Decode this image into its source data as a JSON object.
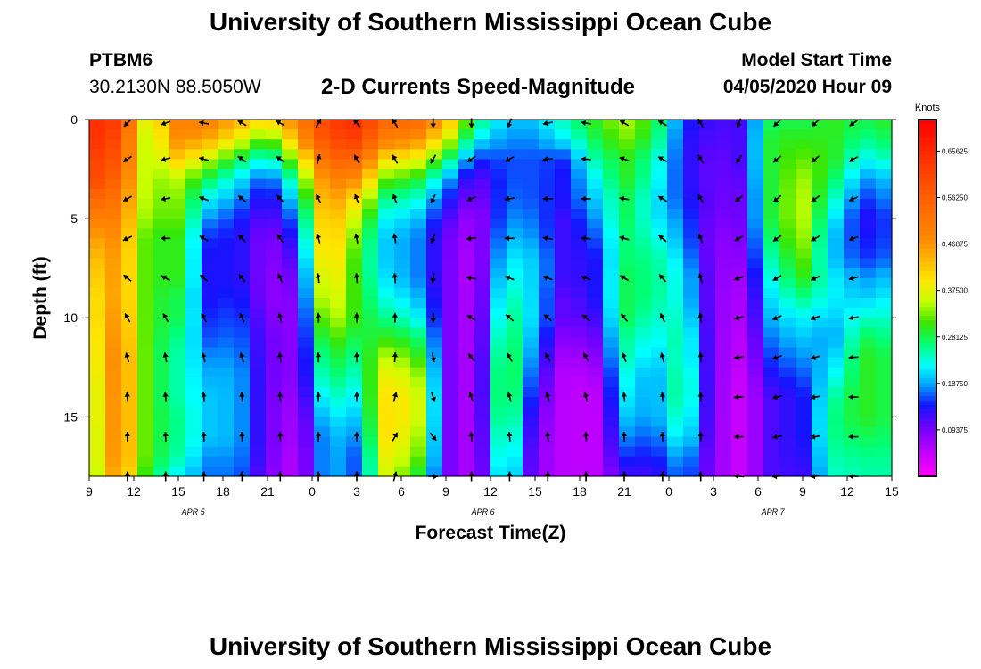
{
  "header": {
    "title": "University of Southern Mississippi Ocean Cube",
    "station": "PTBM6",
    "location": "30.2130N 88.5050W",
    "subtitle": "2-D Currents Speed-Magnitude",
    "model_start_label": "Model Start Time",
    "model_start_value": "04/05/2020 Hour 09"
  },
  "footer": {
    "title": "University of Southern Mississippi Ocean Cube"
  },
  "chart_data": {
    "type": "heatmap",
    "title": "2-D Currents Speed-Magnitude",
    "xlabel": "Forecast Time(Z)",
    "ylabel": "Depth (ft)",
    "x_ticks": [
      "9",
      "12",
      "15",
      "18",
      "21",
      "0",
      "3",
      "6",
      "9",
      "12",
      "15",
      "18",
      "21",
      "0",
      "3",
      "6",
      "9",
      "12",
      "15"
    ],
    "x_hours_since_start": [
      0,
      3,
      6,
      9,
      12,
      15,
      18,
      21,
      24,
      27,
      30,
      33,
      36,
      39,
      42,
      45,
      48,
      51,
      54
    ],
    "date_labels": [
      {
        "label": "APR 5",
        "hour": 7
      },
      {
        "label": "APR 6",
        "hour": 26.5
      },
      {
        "label": "APR 7",
        "hour": 46
      }
    ],
    "ylim": [
      0,
      18
    ],
    "y_ticks": [
      "0",
      "5",
      "10",
      "15"
    ],
    "y_tick_values": [
      0,
      5,
      10,
      15
    ],
    "colorbar": {
      "unit": "Knots",
      "range": [
        0,
        0.72
      ],
      "tick_values": [
        0.09375,
        0.1875,
        0.28125,
        0.375,
        0.46875,
        0.5625,
        0.65625
      ],
      "tick_labels": [
        "0.09375",
        "0.18750",
        "0.28125",
        "0.37500",
        "0.46875",
        "0.56250",
        "0.65625"
      ]
    },
    "grid": {
      "depths_ft": [
        0,
        1,
        2,
        3,
        4,
        5,
        6,
        7,
        8,
        9,
        10,
        11,
        12,
        13,
        14,
        15,
        16,
        17,
        18
      ],
      "profile_hours": [
        0,
        2,
        4,
        6,
        8,
        10,
        12,
        14,
        16,
        18,
        20,
        22,
        24,
        26,
        28,
        30,
        32,
        34,
        36,
        38,
        40,
        42,
        44,
        46,
        48,
        50,
        52,
        54
      ],
      "profiles_knots": [
        [
          0.65,
          0.65,
          0.62,
          0.62,
          0.55,
          0.5,
          0.45,
          0.42,
          0.4,
          0.38,
          0.38,
          0.36,
          0.35,
          0.34,
          0.33,
          0.33,
          0.32,
          0.32,
          0.31
        ],
        [
          0.62,
          0.6,
          0.58,
          0.55,
          0.52,
          0.5,
          0.48,
          0.47,
          0.47,
          0.47,
          0.48,
          0.49,
          0.5,
          0.5,
          0.5,
          0.5,
          0.5,
          0.5,
          0.48
        ],
        [
          0.35,
          0.33,
          0.33,
          0.33,
          0.33,
          0.32,
          0.3,
          0.3,
          0.3,
          0.3,
          0.3,
          0.3,
          0.3,
          0.3,
          0.3,
          0.3,
          0.3,
          0.3,
          0.28
        ],
        [
          0.5,
          0.48,
          0.42,
          0.35,
          0.33,
          0.32,
          0.3,
          0.3,
          0.3,
          0.28,
          0.28,
          0.26,
          0.25,
          0.25,
          0.25,
          0.26,
          0.26,
          0.25,
          0.22
        ],
        [
          0.5,
          0.45,
          0.35,
          0.28,
          0.22,
          0.18,
          0.15,
          0.14,
          0.14,
          0.14,
          0.15,
          0.16,
          0.18,
          0.19,
          0.2,
          0.2,
          0.2,
          0.18,
          0.17
        ],
        [
          0.45,
          0.38,
          0.28,
          0.22,
          0.18,
          0.15,
          0.14,
          0.14,
          0.14,
          0.15,
          0.16,
          0.17,
          0.18,
          0.19,
          0.19,
          0.19,
          0.19,
          0.18,
          0.17
        ],
        [
          0.4,
          0.3,
          0.22,
          0.15,
          0.12,
          0.1,
          0.08,
          0.08,
          0.08,
          0.08,
          0.09,
          0.1,
          0.1,
          0.1,
          0.1,
          0.1,
          0.1,
          0.1,
          0.09
        ],
        [
          0.5,
          0.45,
          0.35,
          0.28,
          0.22,
          0.18,
          0.15,
          0.12,
          0.1,
          0.09,
          0.08,
          0.08,
          0.08,
          0.08,
          0.07,
          0.06,
          0.06,
          0.05,
          0.05
        ],
        [
          0.62,
          0.6,
          0.55,
          0.5,
          0.48,
          0.46,
          0.45,
          0.44,
          0.42,
          0.4,
          0.37,
          0.33,
          0.3,
          0.28,
          0.25,
          0.22,
          0.2,
          0.2,
          0.2
        ],
        [
          0.65,
          0.62,
          0.55,
          0.48,
          0.4,
          0.35,
          0.32,
          0.3,
          0.3,
          0.3,
          0.3,
          0.28,
          0.26,
          0.24,
          0.22,
          0.2,
          0.18,
          0.16,
          0.16
        ],
        [
          0.55,
          0.5,
          0.4,
          0.32,
          0.26,
          0.22,
          0.2,
          0.2,
          0.21,
          0.23,
          0.26,
          0.3,
          0.35,
          0.38,
          0.4,
          0.4,
          0.4,
          0.38,
          0.36
        ],
        [
          0.55,
          0.48,
          0.38,
          0.3,
          0.24,
          0.2,
          0.18,
          0.18,
          0.18,
          0.2,
          0.23,
          0.28,
          0.32,
          0.36,
          0.38,
          0.38,
          0.36,
          0.34,
          0.3
        ],
        [
          0.45,
          0.38,
          0.28,
          0.2,
          0.15,
          0.12,
          0.1,
          0.1,
          0.1,
          0.1,
          0.1,
          0.1,
          0.1,
          0.1,
          0.1,
          0.1,
          0.1,
          0.1,
          0.1
        ],
        [
          0.28,
          0.22,
          0.15,
          0.1,
          0.08,
          0.06,
          0.06,
          0.05,
          0.05,
          0.05,
          0.05,
          0.05,
          0.05,
          0.05,
          0.05,
          0.05,
          0.05,
          0.05,
          0.05
        ],
        [
          0.2,
          0.18,
          0.16,
          0.16,
          0.17,
          0.18,
          0.2,
          0.22,
          0.24,
          0.26,
          0.28,
          0.3,
          0.32,
          0.33,
          0.33,
          0.32,
          0.3,
          0.28,
          0.26
        ],
        [
          0.2,
          0.18,
          0.16,
          0.16,
          0.16,
          0.17,
          0.18,
          0.2,
          0.2,
          0.2,
          0.2,
          0.18,
          0.16,
          0.14,
          0.12,
          0.1,
          0.09,
          0.08,
          0.08
        ],
        [
          0.25,
          0.22,
          0.15,
          0.14,
          0.14,
          0.12,
          0.12,
          0.12,
          0.12,
          0.1,
          0.1,
          0.08,
          0.06,
          0.05,
          0.05,
          0.05,
          0.05,
          0.05,
          0.05
        ],
        [
          0.3,
          0.28,
          0.25,
          0.22,
          0.2,
          0.18,
          0.16,
          0.14,
          0.14,
          0.14,
          0.12,
          0.1,
          0.08,
          0.06,
          0.05,
          0.05,
          0.05,
          0.05,
          0.05
        ],
        [
          0.35,
          0.33,
          0.3,
          0.3,
          0.28,
          0.28,
          0.27,
          0.27,
          0.28,
          0.28,
          0.28,
          0.26,
          0.25,
          0.23,
          0.22,
          0.2,
          0.18,
          0.15,
          0.12
        ],
        [
          0.3,
          0.28,
          0.25,
          0.24,
          0.22,
          0.22,
          0.24,
          0.26,
          0.26,
          0.26,
          0.24,
          0.22,
          0.2,
          0.18,
          0.18,
          0.18,
          0.16,
          0.14,
          0.12
        ],
        [
          0.15,
          0.14,
          0.14,
          0.14,
          0.15,
          0.17,
          0.18,
          0.2,
          0.22,
          0.22,
          0.24,
          0.26,
          0.26,
          0.28,
          0.28,
          0.26,
          0.24,
          0.2,
          0.18
        ],
        [
          0.12,
          0.11,
          0.1,
          0.1,
          0.1,
          0.09,
          0.08,
          0.08,
          0.08,
          0.08,
          0.08,
          0.08,
          0.08,
          0.08,
          0.08,
          0.08,
          0.08,
          0.08,
          0.08
        ],
        [
          0.12,
          0.12,
          0.12,
          0.11,
          0.1,
          0.1,
          0.09,
          0.08,
          0.07,
          0.06,
          0.06,
          0.05,
          0.05,
          0.04,
          0.04,
          0.04,
          0.04,
          0.04,
          0.04
        ],
        [
          0.28,
          0.3,
          0.3,
          0.3,
          0.3,
          0.3,
          0.28,
          0.26,
          0.24,
          0.22,
          0.2,
          0.18,
          0.16,
          0.14,
          0.12,
          0.12,
          0.12,
          0.12,
          0.12
        ],
        [
          0.28,
          0.3,
          0.32,
          0.34,
          0.35,
          0.35,
          0.34,
          0.32,
          0.3,
          0.26,
          0.22,
          0.2,
          0.18,
          0.16,
          0.14,
          0.14,
          0.14,
          0.13,
          0.12
        ],
        [
          0.3,
          0.3,
          0.3,
          0.28,
          0.25,
          0.22,
          0.2,
          0.2,
          0.22,
          0.22,
          0.2,
          0.18,
          0.2,
          0.22,
          0.25,
          0.26,
          0.26,
          0.25,
          0.24
        ],
        [
          0.28,
          0.26,
          0.22,
          0.18,
          0.15,
          0.13,
          0.14,
          0.15,
          0.18,
          0.2,
          0.24,
          0.28,
          0.3,
          0.3,
          0.3,
          0.3,
          0.28,
          0.26,
          0.25
        ],
        [
          0.3,
          0.28,
          0.25,
          0.2,
          0.18,
          0.16,
          0.16,
          0.17,
          0.2,
          0.22,
          0.24,
          0.26,
          0.28,
          0.28,
          0.28,
          0.28,
          0.27,
          0.26,
          0.25
        ]
      ],
      "arrow_depths_ft": [
        0,
        2,
        4,
        6,
        8,
        10,
        12,
        14,
        16,
        18
      ],
      "arrow_directions_deg": [
        [
          225,
          235,
          240,
          245,
          310,
          330,
          345,
          355,
          358,
          0
        ],
        [
          250,
          255,
          260,
          270,
          300,
          330,
          350,
          355,
          358,
          0
        ],
        [
          280,
          285,
          290,
          300,
          310,
          330,
          345,
          355,
          358,
          0
        ],
        [
          300,
          305,
          310,
          315,
          320,
          335,
          345,
          355,
          358,
          0
        ],
        [
          300,
          305,
          315,
          325,
          335,
          345,
          352,
          356,
          358,
          0
        ],
        [
          30,
          15,
          335,
          345,
          352,
          356,
          358,
          359,
          0,
          0
        ],
        [
          320,
          330,
          340,
          350,
          355,
          358,
          359,
          0,
          0,
          0
        ],
        [
          330,
          330,
          340,
          350,
          355,
          0,
          5,
          15,
          30,
          15
        ],
        [
          180,
          210,
          205,
          200,
          190,
          180,
          170,
          160,
          140,
          90
        ],
        [
          180,
          235,
          245,
          260,
          280,
          300,
          320,
          340,
          355,
          0
        ],
        [
          200,
          240,
          260,
          270,
          290,
          310,
          330,
          345,
          355,
          0
        ],
        [
          260,
          265,
          270,
          280,
          290,
          310,
          330,
          345,
          355,
          0
        ],
        [
          280,
          275,
          270,
          275,
          290,
          310,
          330,
          345,
          355,
          0
        ],
        [
          300,
          290,
          280,
          285,
          300,
          320,
          340,
          355,
          358,
          0
        ],
        [
          300,
          300,
          300,
          310,
          320,
          335,
          345,
          355,
          358,
          0
        ],
        [
          330,
          330,
          330,
          340,
          345,
          352,
          356,
          358,
          359,
          0
        ],
        [
          200,
          215,
          230,
          240,
          250,
          255,
          260,
          265,
          270,
          275
        ],
        [
          225,
          230,
          230,
          235,
          240,
          245,
          250,
          255,
          260,
          265
        ],
        [
          225,
          230,
          235,
          240,
          245,
          250,
          255,
          260,
          260,
          265
        ],
        [
          235,
          240,
          245,
          250,
          255,
          260,
          265,
          270,
          270,
          270
        ]
      ]
    }
  }
}
